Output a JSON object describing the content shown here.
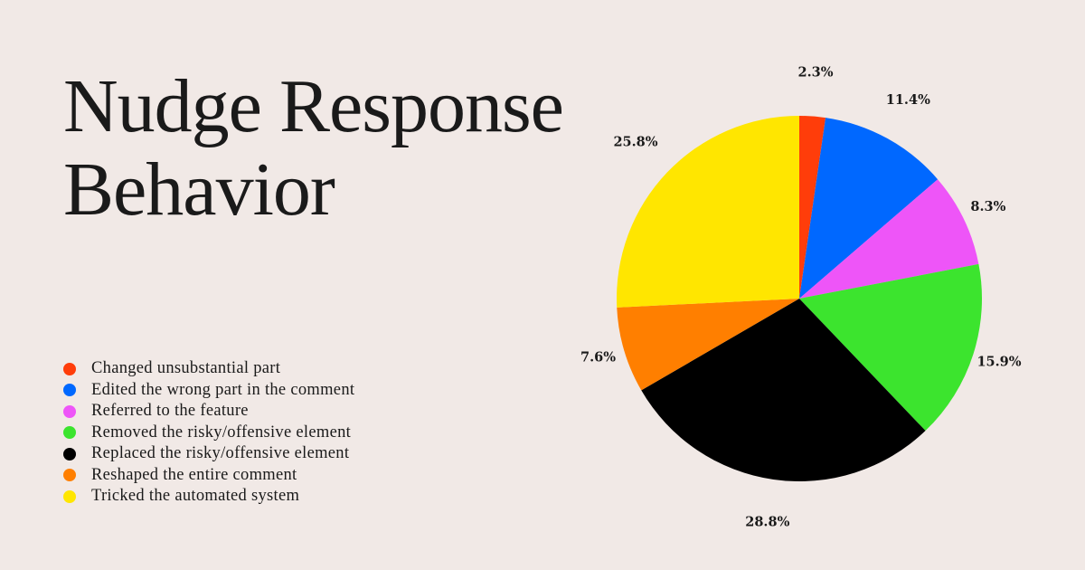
{
  "title_lines": [
    "Nudge Response",
    "Behavior"
  ],
  "chart_data": {
    "type": "pie",
    "title": "Nudge Response Behavior",
    "start_angle": "12 o'clock, clockwise",
    "legend_position": "left",
    "slices": [
      {
        "label": "Changed unsubstantial part",
        "value": 2.3,
        "value_label": "2.3%",
        "color": "#ff3d0a"
      },
      {
        "label": "Edited the wrong part in the comment",
        "value": 11.4,
        "value_label": "11.4%",
        "color": "#0068ff"
      },
      {
        "label": "Referred to the feature",
        "value": 8.3,
        "value_label": "8.3%",
        "color": "#ee55f8"
      },
      {
        "label": "Removed the risky/offensive element",
        "value": 15.9,
        "value_label": "15.9%",
        "color": "#3ce42e"
      },
      {
        "label": "Replaced the risky/offensive element",
        "value": 28.8,
        "value_label": "28.8%",
        "color": "#000000"
      },
      {
        "label": "Reshaped the entire comment",
        "value": 7.6,
        "value_label": "7.6%",
        "color": "#ff7f00"
      },
      {
        "label": "Tricked the automated system",
        "value": 25.8,
        "value_label": "25.8%",
        "color": "#ffe600"
      }
    ]
  }
}
